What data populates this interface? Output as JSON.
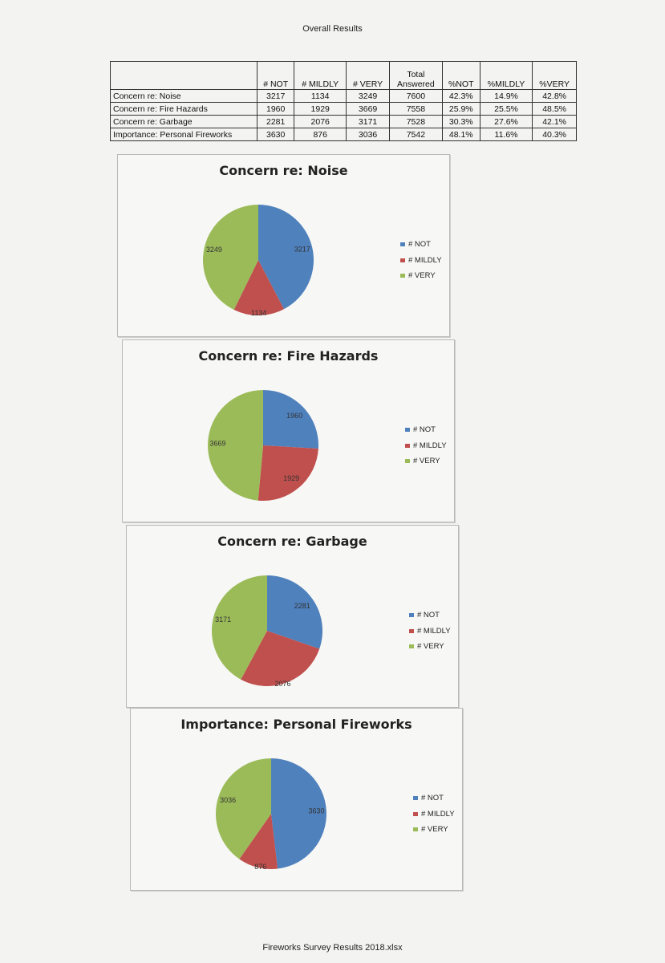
{
  "page_title": "Overall Results",
  "footer": "Fireworks Survey Results 2018.xlsx",
  "colors": {
    "not": "#4f81bd",
    "mildly": "#c0504d",
    "very": "#9bbb59"
  },
  "table": {
    "headers": [
      "# NOT",
      "# MILDLY",
      "# VERY",
      "Total Answered",
      "%NOT",
      "%MILDLY",
      "%VERY"
    ],
    "header_total_top": "Total",
    "header_total_bottom": "Answered",
    "rows": [
      {
        "label": "Concern re: Noise",
        "cells": [
          "3217",
          "1134",
          "3249",
          "7600",
          "42.3%",
          "14.9%",
          "42.8%"
        ]
      },
      {
        "label": "Concern re: Fire Hazards",
        "cells": [
          "1960",
          "1929",
          "3669",
          "7558",
          "25.9%",
          "25.5%",
          "48.5%"
        ]
      },
      {
        "label": "Concern re: Garbage",
        "cells": [
          "2281",
          "2076",
          "3171",
          "7528",
          "30.3%",
          "27.6%",
          "42.1%"
        ]
      },
      {
        "label": "Importance: Personal Fireworks",
        "cells": [
          "3630",
          "876",
          "3036",
          "7542",
          "48.1%",
          "11.6%",
          "40.3%"
        ]
      }
    ]
  },
  "chart_data": [
    {
      "type": "pie",
      "title": "Concern re: Noise",
      "categories": [
        "# NOT",
        "# MILDLY",
        "# VERY"
      ],
      "values": [
        3217,
        1134,
        3249
      ],
      "legend": "right"
    },
    {
      "type": "pie",
      "title": "Concern re: Fire Hazards",
      "categories": [
        "# NOT",
        "# MILDLY",
        "# VERY"
      ],
      "values": [
        1960,
        1929,
        3669
      ],
      "legend": "right"
    },
    {
      "type": "pie",
      "title": "Concern re: Garbage",
      "categories": [
        "# NOT",
        "# MILDLY",
        "# VERY"
      ],
      "values": [
        2281,
        2076,
        3171
      ],
      "legend": "right"
    },
    {
      "type": "pie",
      "title": "Importance: Personal Fireworks",
      "categories": [
        "# NOT",
        "# MILDLY",
        "# VERY"
      ],
      "values": [
        3630,
        876,
        3036
      ],
      "legend": "right"
    }
  ]
}
